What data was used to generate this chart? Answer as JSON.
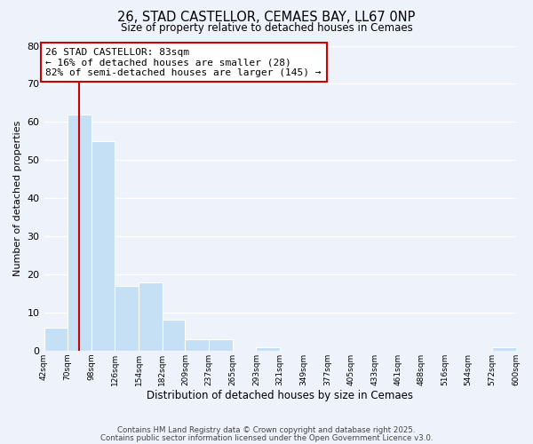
{
  "title": "26, STAD CASTELLOR, CEMAES BAY, LL67 0NP",
  "subtitle": "Size of property relative to detached houses in Cemaes",
  "xlabel": "Distribution of detached houses by size in Cemaes",
  "ylabel": "Number of detached properties",
  "bar_color": "#c5dff5",
  "background_color": "#eef2fa",
  "grid_color": "#ffffff",
  "bins": [
    42,
    70,
    98,
    126,
    154,
    182,
    209,
    237,
    265,
    293,
    321,
    349,
    377,
    405,
    433,
    461,
    488,
    516,
    544,
    572,
    600
  ],
  "counts": [
    6,
    62,
    55,
    17,
    18,
    8,
    3,
    3,
    0,
    1,
    0,
    0,
    0,
    0,
    0,
    0,
    0,
    0,
    0,
    1
  ],
  "ylim": [
    0,
    80
  ],
  "yticks": [
    0,
    10,
    20,
    30,
    40,
    50,
    60,
    70,
    80
  ],
  "property_line_x": 83,
  "property_line_color": "#cc0000",
  "annotation_text": "26 STAD CASTELLOR: 83sqm\n← 16% of detached houses are smaller (28)\n82% of semi-detached houses are larger (145) →",
  "annotation_box_facecolor": "#ffffff",
  "annotation_box_edgecolor": "#cc0000",
  "footer_line1": "Contains HM Land Registry data © Crown copyright and database right 2025.",
  "footer_line2": "Contains public sector information licensed under the Open Government Licence v3.0.",
  "tick_labels": [
    "42sqm",
    "70sqm",
    "98sqm",
    "126sqm",
    "154sqm",
    "182sqm",
    "209sqm",
    "237sqm",
    "265sqm",
    "293sqm",
    "321sqm",
    "349sqm",
    "377sqm",
    "405sqm",
    "433sqm",
    "461sqm",
    "488sqm",
    "516sqm",
    "544sqm",
    "572sqm",
    "600sqm"
  ]
}
